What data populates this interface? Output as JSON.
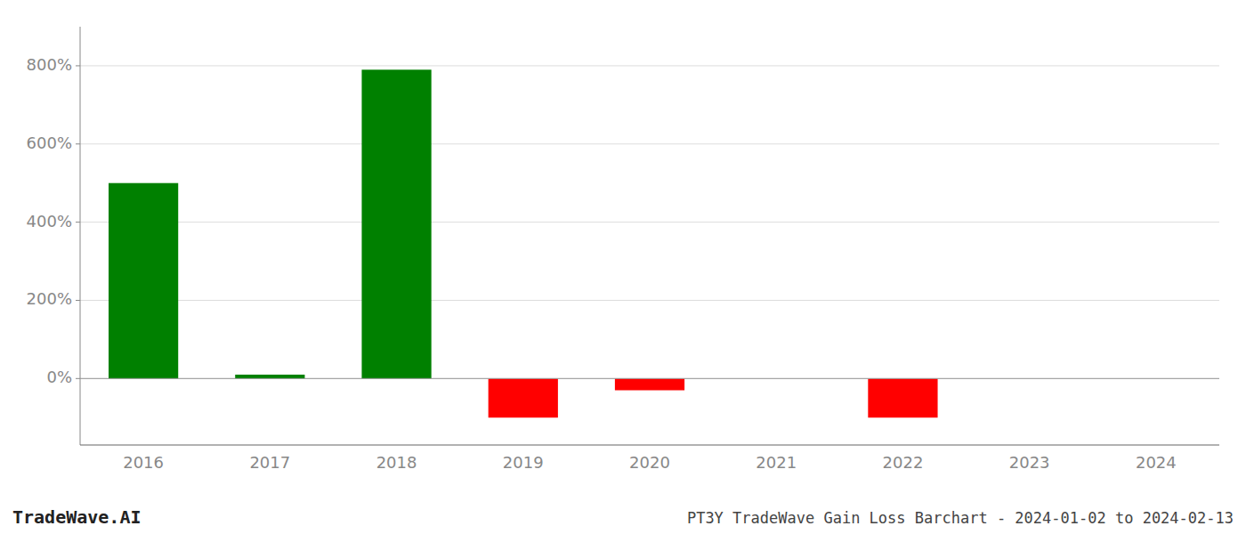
{
  "chart_data": {
    "type": "bar",
    "categories": [
      "2016",
      "2017",
      "2018",
      "2019",
      "2020",
      "2021",
      "2022",
      "2023",
      "2024"
    ],
    "values": [
      500,
      10,
      790,
      -100,
      -30,
      0,
      -100,
      0,
      0
    ],
    "colors": [
      "#008000",
      "#008000",
      "#008000",
      "#ff0000",
      "#ff0000",
      "#008000",
      "#ff0000",
      "#008000",
      "#008000"
    ],
    "ylim": [
      -170,
      900
    ],
    "yticks": [
      {
        "value": 0,
        "label": "0%"
      },
      {
        "value": 200,
        "label": "200%"
      },
      {
        "value": 400,
        "label": "400%"
      },
      {
        "value": 600,
        "label": "600%"
      },
      {
        "value": 800,
        "label": "800%"
      }
    ],
    "grid": true,
    "annotations": [
      "TradeWave.AI",
      "PT3Y TradeWave Gain Loss Barchart - 2024-01-02 to 2024-02-13"
    ]
  }
}
